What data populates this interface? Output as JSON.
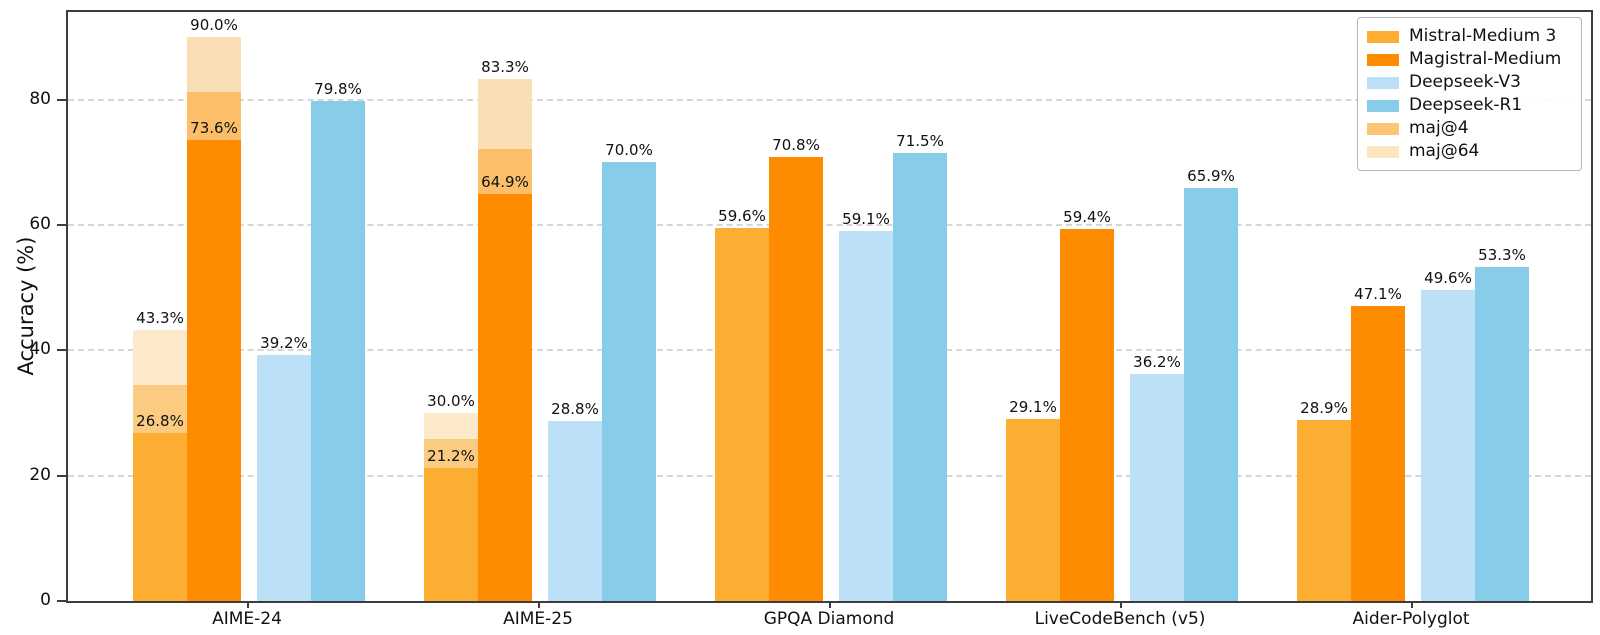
{
  "chart_data": {
    "type": "bar",
    "title": "",
    "ylabel": "Accuracy (%)",
    "ylim": [
      0,
      94
    ],
    "yticks": [
      0,
      20,
      40,
      60,
      80
    ],
    "grid": "horizontal dashed gridlines at yticks, behind bars",
    "legend_position": "upper right",
    "value_label_format": "{value}%",
    "categories": [
      "AIME-24",
      "AIME-25",
      "GPQA Diamond",
      "LiveCodeBench (v5)",
      "Aider-Polyglot"
    ],
    "series": [
      {
        "name": "Mistral-Medium 3",
        "color": "#FCAE33",
        "values": [
          26.8,
          21.2,
          59.6,
          29.1,
          28.9
        ]
      },
      {
        "name": "Magistral-Medium",
        "color": "#FF8C00",
        "values": [
          73.6,
          64.9,
          70.8,
          59.4,
          47.1
        ]
      },
      {
        "name": "Deepseek-V3",
        "color": "#BDE0F9",
        "values": [
          39.2,
          28.8,
          59.1,
          36.2,
          49.6
        ]
      },
      {
        "name": "Deepseek-R1",
        "color": "#87CCE8",
        "values": [
          79.8,
          70.0,
          71.5,
          65.9,
          53.3
        ]
      }
    ],
    "overlays": [
      {
        "name": "maj@4",
        "legend_color": "#FCC573",
        "applies_to_series": [
          "Mistral-Medium 3",
          "Magistral-Medium"
        ],
        "segment_colors": [
          "#FCCB82",
          "#FCBE69"
        ],
        "values": [
          [
            34.4,
            25.8,
            null,
            null,
            null
          ],
          [
            81.3,
            72.1,
            null,
            null,
            null
          ]
        ]
      },
      {
        "name": "maj@64",
        "legend_color": "#FDE5BF",
        "applies_to_series": [
          "Mistral-Medium 3",
          "Magistral-Medium"
        ],
        "segment_colors": [
          "#FDEACA",
          "#FBDFB4"
        ],
        "values": [
          [
            43.3,
            30.0,
            null,
            null,
            null
          ],
          [
            90.0,
            83.3,
            null,
            null,
            null
          ]
        ]
      }
    ]
  }
}
